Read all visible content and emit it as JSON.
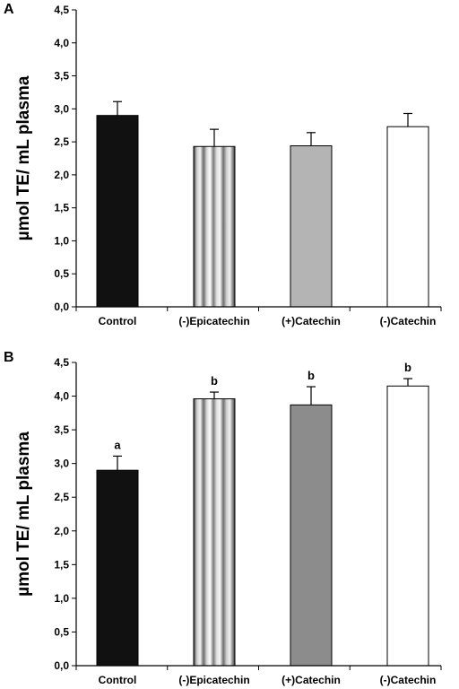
{
  "panels": [
    {
      "letter": "A"
    },
    {
      "letter": "B"
    }
  ],
  "chart_data": [
    {
      "type": "bar",
      "panel": "A",
      "categories": [
        "Control",
        "(-)Epicatechin",
        "(+)Catechin",
        "(-)Catechin"
      ],
      "values": [
        2.9,
        2.43,
        2.44,
        2.73
      ],
      "errors": [
        0.21,
        0.26,
        0.2,
        0.2
      ],
      "sig_letters": [
        "",
        "",
        "",
        ""
      ],
      "ylabel": "µmol TE/ mL plasma",
      "ylim": [
        0,
        4.5
      ],
      "yticks": [
        "0,0",
        "0,5",
        "1,0",
        "1,5",
        "2,0",
        "2,5",
        "3,0",
        "3,5",
        "4,0",
        "4,5"
      ],
      "grid": false,
      "bar_fills": [
        "#111111",
        "stripes",
        "#b4b4b4",
        "#ffffff"
      ]
    },
    {
      "type": "bar",
      "panel": "B",
      "categories": [
        "Control",
        "(-)Epicatechin",
        "(+)Catechin",
        "(-)Catechin"
      ],
      "values": [
        2.9,
        3.96,
        3.87,
        4.15
      ],
      "errors": [
        0.21,
        0.1,
        0.27,
        0.11
      ],
      "sig_letters": [
        "a",
        "b",
        "b",
        "b"
      ],
      "ylabel": "µmol TE/ mL plasma",
      "ylim": [
        0,
        4.5
      ],
      "yticks": [
        "0,0",
        "0,5",
        "1,0",
        "1,5",
        "2,0",
        "2,5",
        "3,0",
        "3,5",
        "4,0",
        "4,5"
      ],
      "grid": false,
      "bar_fills": [
        "#111111",
        "stripes",
        "#8c8c8c",
        "#ffffff"
      ]
    }
  ]
}
